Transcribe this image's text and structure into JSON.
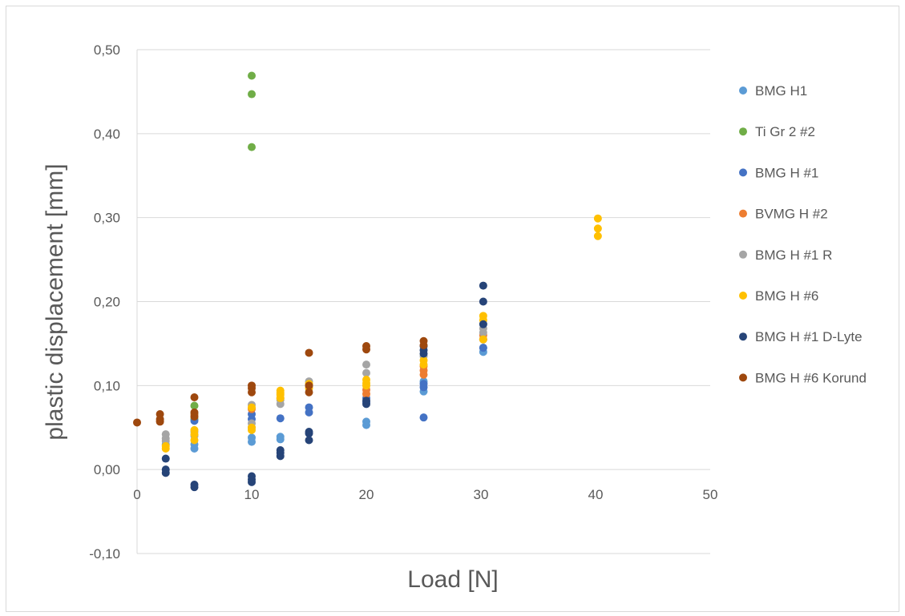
{
  "chart_data": {
    "type": "scatter",
    "title": "",
    "xlabel": "Load [N]",
    "ylabel": "plastic displacement [mm]",
    "xlim": [
      0,
      50
    ],
    "ylim": [
      -0.1,
      0.5
    ],
    "x_ticks": [
      "0",
      "10",
      "20",
      "30",
      "40",
      "50"
    ],
    "y_ticks": [
      "-0,10",
      "0,00",
      "0,10",
      "0,20",
      "0,30",
      "0,40",
      "0,50"
    ],
    "grid": "horizontal",
    "legend_position": "right",
    "series": [
      {
        "name": "BMG H1",
        "color": "#5b9bd5",
        "points": [
          [
            2.5,
            0.03
          ],
          [
            5,
            0.025
          ],
          [
            5,
            0.03
          ],
          [
            10,
            0.033
          ],
          [
            10,
            0.038
          ],
          [
            12.5,
            0.036
          ],
          [
            12.5,
            0.039
          ],
          [
            20,
            0.053
          ],
          [
            20,
            0.057
          ],
          [
            25,
            0.093
          ],
          [
            25,
            0.105
          ],
          [
            30.2,
            0.14
          ],
          [
            30.2,
            0.145
          ]
        ]
      },
      {
        "name": "Ti Gr 2 #2",
        "color": "#70ad47",
        "points": [
          [
            5,
            0.06
          ],
          [
            5,
            0.066
          ],
          [
            5,
            0.076
          ],
          [
            10,
            0.384
          ],
          [
            10,
            0.447
          ],
          [
            10,
            0.469
          ]
        ]
      },
      {
        "name": "BMG H #1",
        "color": "#4472c4",
        "points": [
          [
            5,
            0.058
          ],
          [
            10,
            0.06
          ],
          [
            10,
            0.066
          ],
          [
            12.5,
            0.061
          ],
          [
            15,
            0.068
          ],
          [
            15,
            0.074
          ],
          [
            20,
            0.08
          ],
          [
            20,
            0.085
          ],
          [
            25,
            0.062
          ],
          [
            25,
            0.098
          ],
          [
            25,
            0.102
          ],
          [
            30.2,
            0.145
          ],
          [
            30.2,
            0.155
          ]
        ]
      },
      {
        "name": "BVMG H #2",
        "color": "#ed7d31",
        "points": [
          [
            2,
            0.058
          ],
          [
            5,
            0.065
          ],
          [
            10,
            0.072
          ],
          [
            12.5,
            0.085
          ],
          [
            15,
            0.1
          ],
          [
            20,
            0.09
          ],
          [
            20,
            0.095
          ],
          [
            25,
            0.113
          ],
          [
            25,
            0.118
          ],
          [
            25,
            0.123
          ],
          [
            30.2,
            0.155
          ],
          [
            30.2,
            0.16
          ]
        ]
      },
      {
        "name": "BMG H #1 R",
        "color": "#a5a5a5",
        "points": [
          [
            2.5,
            0.034
          ],
          [
            2.5,
            0.037
          ],
          [
            2.5,
            0.042
          ],
          [
            5,
            0.04
          ],
          [
            5,
            0.045
          ],
          [
            10,
            0.05
          ],
          [
            10,
            0.055
          ],
          [
            10,
            0.077
          ],
          [
            12.5,
            0.078
          ],
          [
            12.5,
            0.083
          ],
          [
            15,
            0.1
          ],
          [
            15,
            0.105
          ],
          [
            20,
            0.115
          ],
          [
            20,
            0.125
          ],
          [
            25,
            0.135
          ],
          [
            30.2,
            0.163
          ],
          [
            30.2,
            0.168
          ],
          [
            30.2,
            0.173
          ]
        ]
      },
      {
        "name": "BMG H #6",
        "color": "#ffc000",
        "points": [
          [
            2.5,
            0.025
          ],
          [
            2.5,
            0.028
          ],
          [
            5,
            0.035
          ],
          [
            5,
            0.042
          ],
          [
            5,
            0.047
          ],
          [
            10,
            0.047
          ],
          [
            10,
            0.05
          ],
          [
            10,
            0.074
          ],
          [
            12.5,
            0.085
          ],
          [
            12.5,
            0.089
          ],
          [
            12.5,
            0.091
          ],
          [
            12.5,
            0.094
          ],
          [
            15,
            0.097
          ],
          [
            15,
            0.102
          ],
          [
            20,
            0.1
          ],
          [
            20,
            0.103
          ],
          [
            20,
            0.107
          ],
          [
            25,
            0.125
          ],
          [
            25,
            0.13
          ],
          [
            30.2,
            0.155
          ],
          [
            30.2,
            0.178
          ],
          [
            30.2,
            0.183
          ],
          [
            40.2,
            0.278
          ],
          [
            40.2,
            0.287
          ],
          [
            40.2,
            0.299
          ]
        ]
      },
      {
        "name": "BMG H #1 D-Lyte",
        "color": "#264478",
        "points": [
          [
            2.5,
            -0.004
          ],
          [
            2.5,
            0.0
          ],
          [
            2.5,
            0.013
          ],
          [
            5,
            -0.021
          ],
          [
            5,
            -0.018
          ],
          [
            10,
            -0.015
          ],
          [
            10,
            -0.012
          ],
          [
            10,
            -0.008
          ],
          [
            12.5,
            0.016
          ],
          [
            12.5,
            0.02
          ],
          [
            12.5,
            0.023
          ],
          [
            15,
            0.035
          ],
          [
            15,
            0.043
          ],
          [
            15,
            0.045
          ],
          [
            20,
            0.078
          ],
          [
            20,
            0.082
          ],
          [
            25,
            0.138
          ],
          [
            25,
            0.142
          ],
          [
            25,
            0.147
          ],
          [
            30.2,
            0.173
          ],
          [
            30.2,
            0.2
          ],
          [
            30.2,
            0.219
          ]
        ]
      },
      {
        "name": "BMG H #6 Korund",
        "color": "#9e480e",
        "points": [
          [
            0,
            0.056
          ],
          [
            2,
            0.057
          ],
          [
            2,
            0.06
          ],
          [
            2,
            0.066
          ],
          [
            5,
            0.063
          ],
          [
            5,
            0.068
          ],
          [
            5,
            0.086
          ],
          [
            10,
            0.092
          ],
          [
            10,
            0.097
          ],
          [
            10,
            0.1
          ],
          [
            15,
            0.092
          ],
          [
            15,
            0.1
          ],
          [
            15,
            0.139
          ],
          [
            20,
            0.143
          ],
          [
            20,
            0.147
          ],
          [
            25,
            0.148
          ],
          [
            25,
            0.153
          ]
        ]
      }
    ]
  }
}
